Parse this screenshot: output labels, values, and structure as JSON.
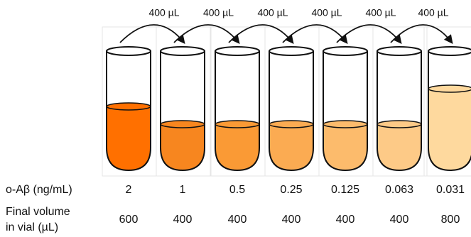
{
  "transfers": [
    "400 µL",
    "400 µL",
    "400 µL",
    "400 µL",
    "400 µL",
    "400 µL"
  ],
  "rows": [
    {
      "label": [
        "o-Aβ (ng/mL)"
      ],
      "values": [
        "2",
        "1",
        "0.5",
        "0.25",
        "0.125",
        "0.063",
        "0.031"
      ]
    },
    {
      "label": [
        "Final volume",
        "in vial (µL)"
      ],
      "values": [
        "600",
        "400",
        "400",
        "400",
        "400",
        "400",
        "800"
      ]
    }
  ]
}
